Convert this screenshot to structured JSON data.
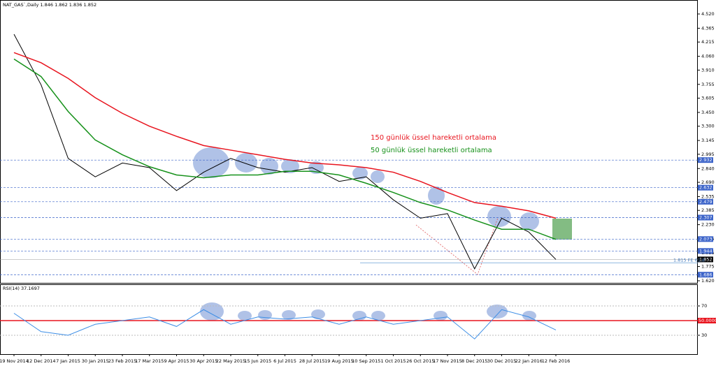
{
  "chart_data": [
    {
      "type": "line",
      "title": "NAT_GAS`,Daily 1.846 1.862 1.836 1.852",
      "categories": [
        "19 Nov 2014",
        "12 Dec 2014",
        "7 Jan 2015",
        "30 Jan 2015",
        "23 Feb 2015",
        "17 Mar 2015",
        "9 Apr 2015",
        "30 Apr 2015",
        "22 May 2015",
        "15 Jun 2015",
        "6 Jul 2015",
        "28 Jul 2015",
        "19 Aug 2015",
        "10 Sep 2015",
        "1 Oct 2015",
        "26 Oct 2015",
        "17 Nov 2015",
        "8 Dec 2015",
        "30 Dec 2015",
        "22 Jan 2016",
        "12 Feb 2016"
      ],
      "series": [
        {
          "color": "#000000",
          "values": [
            4.3,
            3.75,
            2.95,
            2.75,
            2.9,
            2.85,
            2.6,
            2.8,
            2.95,
            2.85,
            2.8,
            2.85,
            2.7,
            2.75,
            2.5,
            2.3,
            2.35,
            1.75,
            2.3,
            2.15,
            1.852
          ]
        },
        {
          "name": "150 günlük üssel hareketli ortalama",
          "color": "#e8141e",
          "values": [
            4.1,
            3.99,
            3.82,
            3.61,
            3.44,
            3.3,
            3.19,
            3.09,
            3.04,
            2.99,
            2.94,
            2.9,
            2.88,
            2.85,
            2.8,
            2.7,
            2.58,
            2.47,
            2.43,
            2.38,
            2.3
          ]
        },
        {
          "name": "50 günlük üssel hareketli ortalama",
          "color": "#16911a",
          "values": [
            4.03,
            3.84,
            3.46,
            3.15,
            2.99,
            2.86,
            2.77,
            2.74,
            2.77,
            2.77,
            2.81,
            2.81,
            2.77,
            2.68,
            2.58,
            2.47,
            2.39,
            2.28,
            2.18,
            2.18,
            2.07
          ]
        }
      ],
      "ylim": [
        1.597,
        4.634
      ],
      "yticks": [
        {
          "value": 4.52,
          "label": "4.520"
        },
        4.365,
        4.215,
        {
          "value": 4.06,
          "label": "4.060"
        },
        {
          "value": 3.91,
          "label": "3.910"
        },
        3.755,
        3.605,
        {
          "value": 3.45,
          "label": "3.450"
        },
        {
          "value": 3.3,
          "label": "3.300"
        },
        3.145,
        2.995,
        {
          "value": 2.84,
          "label": "2.840"
        },
        {
          "value": 2.69,
          "label": "2.690"
        },
        2.535,
        2.385,
        {
          "value": 2.23,
          "label": "2.230"
        },
        2.075,
        1.925,
        1.775,
        {
          "value": 1.62,
          "label": "1.620"
        }
      ],
      "levels": [
        2.932,
        2.632,
        2.479,
        2.307,
        2.073,
        1.944,
        1.686
      ],
      "level_color": "#3b63c9",
      "last_price": 1.852,
      "projection": {
        "value": 1.815,
        "label": "1.815 FE 61.8"
      }
    },
    {
      "type": "line",
      "title": "RSI(14) 37.1697",
      "series": [
        {
          "color": "#3d8ee6",
          "values": [
            60,
            35,
            30,
            45,
            50,
            55,
            42,
            65,
            45,
            55,
            52,
            55,
            45,
            55,
            45,
            50,
            55,
            25,
            65,
            55,
            37.1697
          ]
        }
      ],
      "ylim": [
        1.4,
        96.7
      ],
      "yticks": [
        70,
        30
      ],
      "level": {
        "value": 50,
        "label": "50.0000",
        "color": "#e8141e"
      }
    }
  ]
}
